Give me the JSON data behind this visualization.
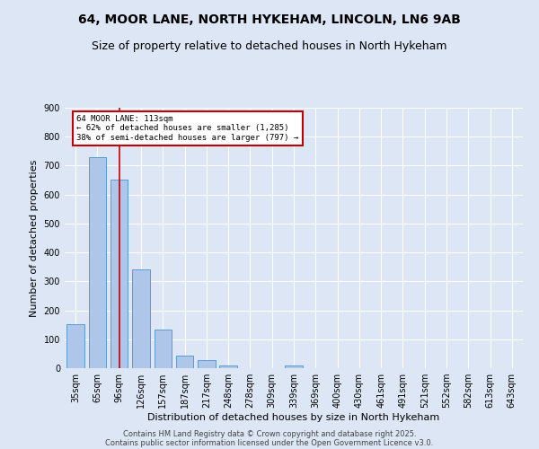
{
  "title_line1": "64, MOOR LANE, NORTH HYKEHAM, LINCOLN, LN6 9AB",
  "title_line2": "Size of property relative to detached houses in North Hykeham",
  "xlabel": "Distribution of detached houses by size in North Hykeham",
  "ylabel": "Number of detached properties",
  "categories": [
    "35sqm",
    "65sqm",
    "96sqm",
    "126sqm",
    "157sqm",
    "187sqm",
    "217sqm",
    "248sqm",
    "278sqm",
    "309sqm",
    "339sqm",
    "369sqm",
    "400sqm",
    "430sqm",
    "461sqm",
    "491sqm",
    "521sqm",
    "552sqm",
    "582sqm",
    "613sqm",
    "643sqm"
  ],
  "values": [
    152,
    728,
    652,
    340,
    135,
    43,
    28,
    10,
    0,
    0,
    8,
    0,
    0,
    0,
    0,
    0,
    0,
    0,
    0,
    0,
    0
  ],
  "bar_color": "#aec6e8",
  "bar_edge_color": "#5b9bd5",
  "vline_x_index": 2,
  "vline_color": "#c00000",
  "annotation_text": "64 MOOR LANE: 113sqm\n← 62% of detached houses are smaller (1,285)\n38% of semi-detached houses are larger (797) →",
  "annotation_box_color": "#ffffff",
  "annotation_box_edge_color": "#c00000",
  "ylim": [
    0,
    900
  ],
  "yticks": [
    0,
    100,
    200,
    300,
    400,
    500,
    600,
    700,
    800,
    900
  ],
  "background_color": "#dce6f5",
  "footer_line1": "Contains HM Land Registry data © Crown copyright and database right 2025.",
  "footer_line2": "Contains public sector information licensed under the Open Government Licence v3.0.",
  "title_fontsize": 10,
  "subtitle_fontsize": 9,
  "axis_label_fontsize": 8,
  "tick_fontsize": 7,
  "footer_fontsize": 6
}
